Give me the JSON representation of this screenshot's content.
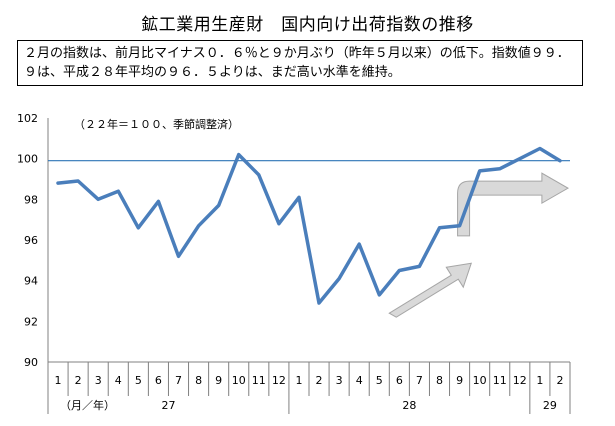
{
  "title": "鉱工業用生産財　国内向け出荷指数の推移",
  "note": "２月の指数は、前月比マイナス０．６％と９か月ぶり（昨年５月以来）の低下。指数値９９．９は、平成２８年平均の９６．５よりは、まだ高い水準を維持。",
  "chart_data": {
    "type": "line",
    "annotation": "（２２年＝１００、季節調整済）",
    "unit_label": "（月／年）",
    "x": [
      "1",
      "2",
      "3",
      "4",
      "5",
      "6",
      "7",
      "8",
      "9",
      "10",
      "11",
      "12",
      "1",
      "2",
      "3",
      "4",
      "5",
      "6",
      "7",
      "8",
      "9",
      "10",
      "11",
      "12",
      "1",
      "2"
    ],
    "year_groups": [
      {
        "label": "27",
        "count": 12
      },
      {
        "label": "28",
        "count": 12
      },
      {
        "label": "29",
        "count": 2
      }
    ],
    "series": [
      {
        "values": [
          98.8,
          98.9,
          98.0,
          98.4,
          96.6,
          97.9,
          95.2,
          96.7,
          97.7,
          100.2,
          99.2,
          96.8,
          98.1,
          92.9,
          94.1,
          95.8,
          93.3,
          94.5,
          94.7,
          96.6,
          96.7,
          99.4,
          99.5,
          100.0,
          100.5,
          99.9
        ]
      }
    ],
    "reference_line": 99.9,
    "yticks": [
      "90",
      "92",
      "94",
      "96",
      "98",
      "100",
      "102"
    ],
    "ylim": [
      90,
      102
    ],
    "line_color": "#4a7ebb",
    "ref_color": "#2e75b6",
    "arrow_color": "#d9d9d9"
  }
}
